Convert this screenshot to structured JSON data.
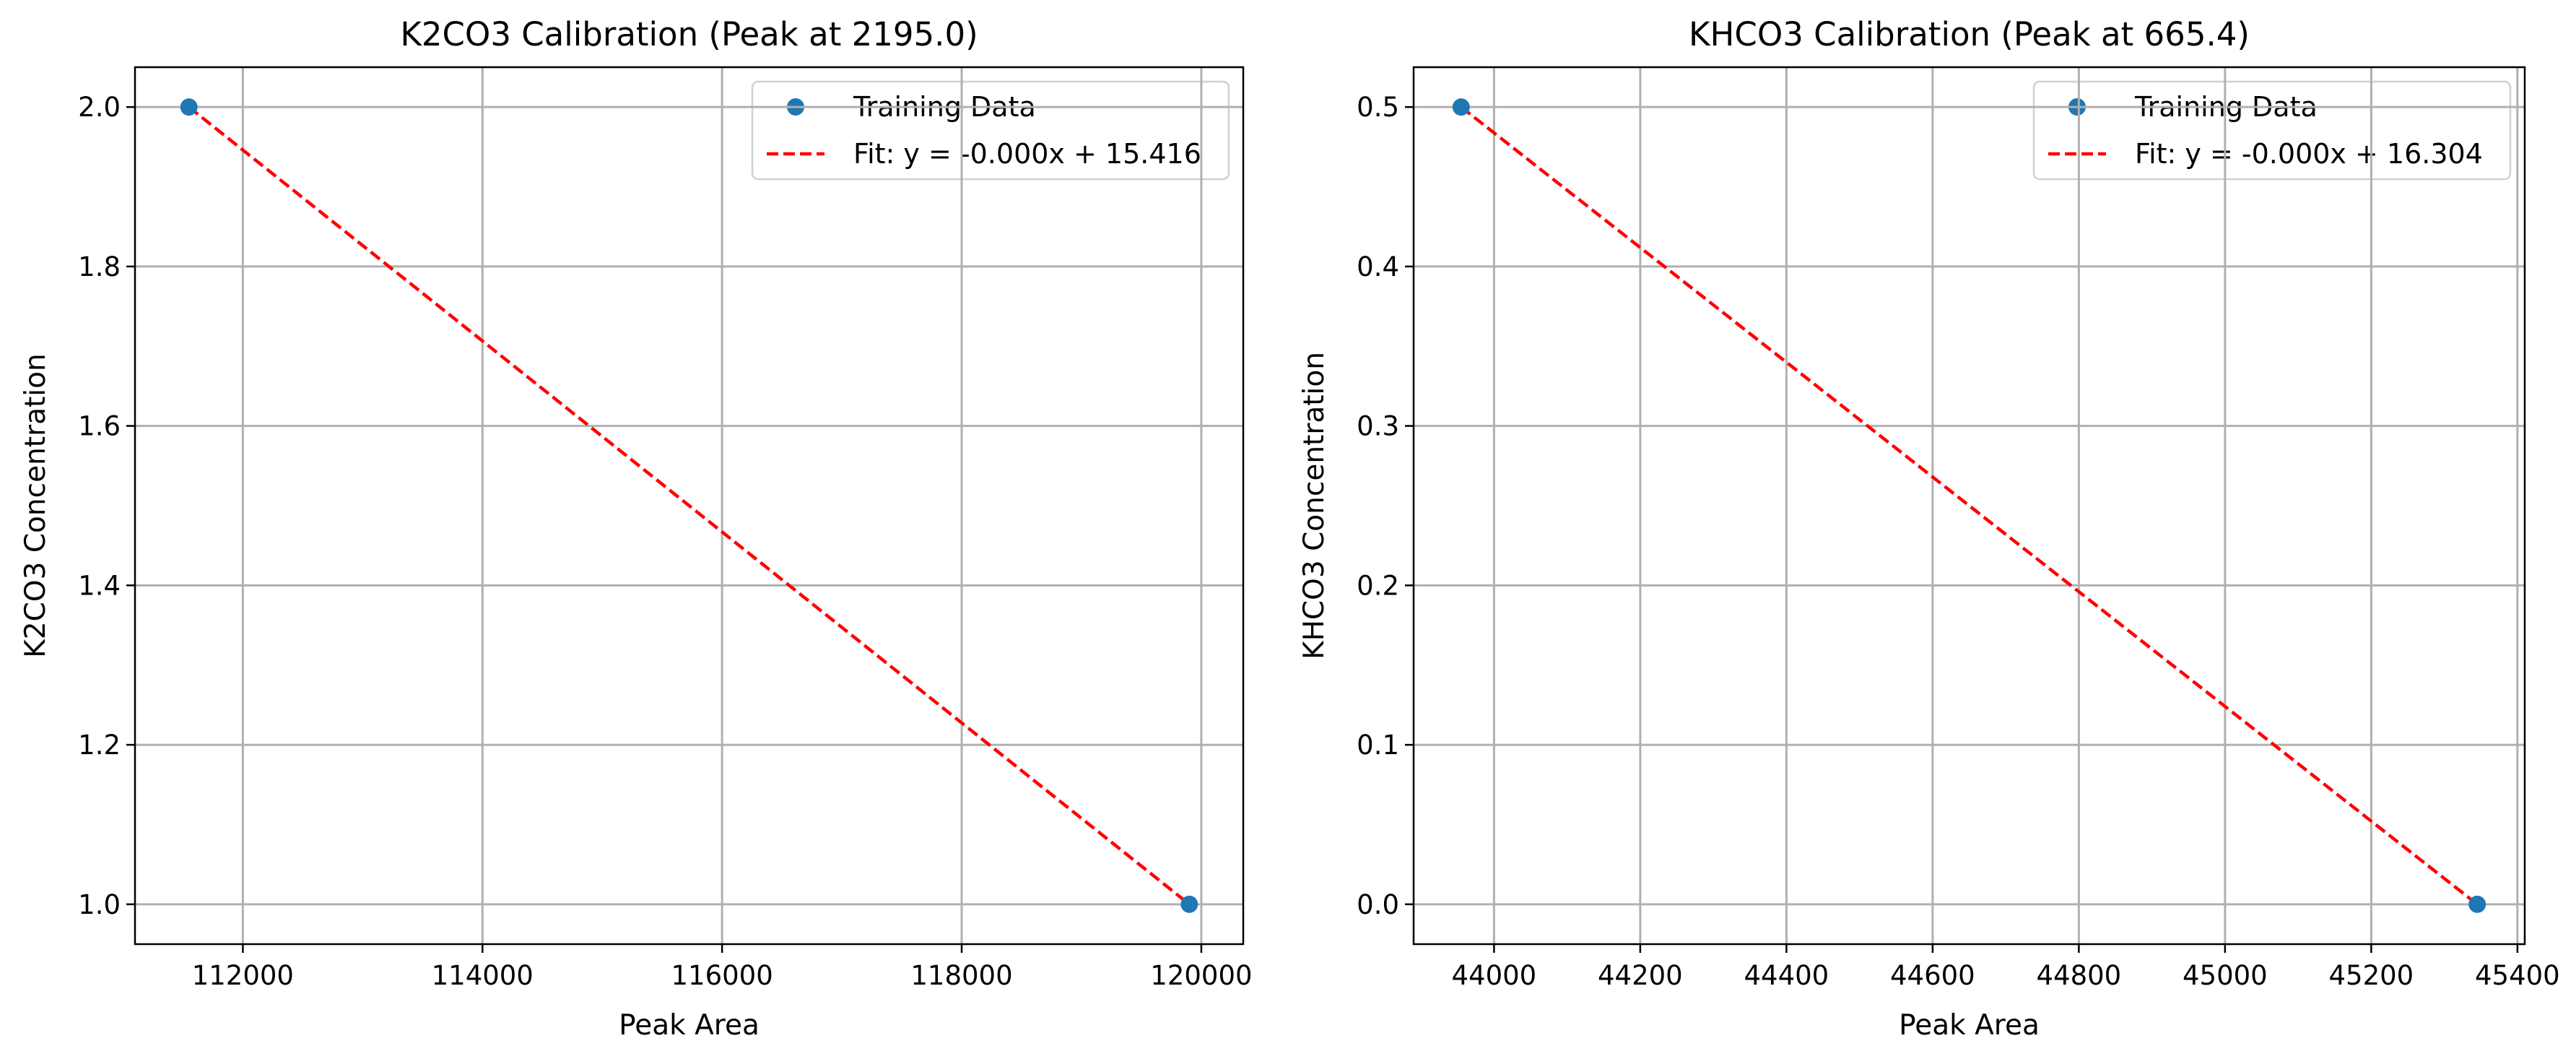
{
  "chart_data": [
    {
      "type": "scatter",
      "title": "K2CO3 Calibration (Peak at 2195.0)",
      "xlabel": "Peak Area",
      "ylabel": "K2CO3 Concentration",
      "xlim": [
        111100,
        120350
      ],
      "ylim": [
        0.95,
        2.05
      ],
      "xticks": [
        112000,
        114000,
        116000,
        118000,
        120000
      ],
      "xtick_labels": [
        "112000",
        "114000",
        "116000",
        "118000",
        "120000"
      ],
      "yticks": [
        1.0,
        1.2,
        1.4,
        1.6,
        1.8,
        2.0
      ],
      "ytick_labels": [
        "1.0",
        "1.2",
        "1.4",
        "1.6",
        "1.8",
        "2.0"
      ],
      "grid": true,
      "legend_position": "top-right",
      "series": [
        {
          "name": "Training Data",
          "kind": "scatter",
          "color": "#1f77b4",
          "x": [
            111550,
            119900
          ],
          "y": [
            2.0,
            1.0
          ]
        },
        {
          "name": "Fit: y = -0.000x + 15.416",
          "kind": "line",
          "style": "dashed",
          "color": "#ff0000",
          "x": [
            111550,
            119900
          ],
          "y": [
            2.0,
            1.0
          ]
        }
      ]
    },
    {
      "type": "scatter",
      "title": "KHCO3 Calibration (Peak at 665.4)",
      "xlabel": "Peak Area",
      "ylabel": "KHCO3 Concentration",
      "xlim": [
        43890,
        45410
      ],
      "ylim": [
        -0.025,
        0.525
      ],
      "xticks": [
        44000,
        44200,
        44400,
        44600,
        44800,
        45000,
        45200,
        45400
      ],
      "xtick_labels": [
        "44000",
        "44200",
        "44400",
        "44600",
        "44800",
        "45000",
        "45200",
        "45400"
      ],
      "yticks": [
        0.0,
        0.1,
        0.2,
        0.3,
        0.4,
        0.5
      ],
      "ytick_labels": [
        "0.0",
        "0.1",
        "0.2",
        "0.3",
        "0.4",
        "0.5"
      ],
      "grid": true,
      "legend_position": "top-right",
      "series": [
        {
          "name": "Training Data",
          "kind": "scatter",
          "color": "#1f77b4",
          "x": [
            43955,
            45345
          ],
          "y": [
            0.5,
            0.0
          ]
        },
        {
          "name": "Fit: y = -0.000x + 16.304",
          "kind": "line",
          "style": "dashed",
          "color": "#ff0000",
          "x": [
            43955,
            45345
          ],
          "y": [
            0.5,
            0.0
          ]
        }
      ]
    }
  ]
}
